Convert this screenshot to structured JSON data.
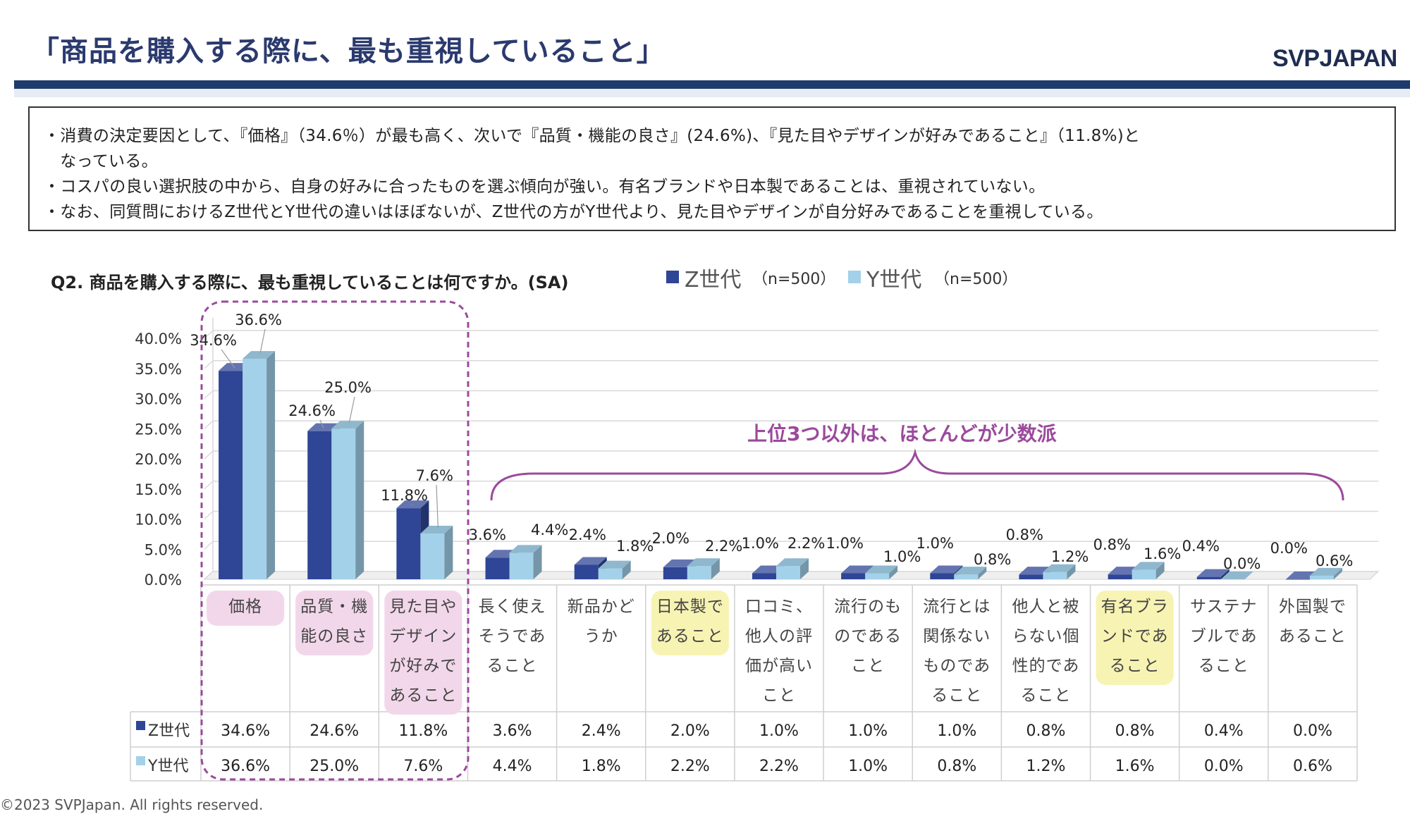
{
  "header": {
    "title": "「商品を購入する際に、最も重視していること」",
    "logo": "SVPJAPAN"
  },
  "summary": {
    "bullets": [
      "・消費の決定要因として、『価格』（34.6％）が最も高く、次いで『品質・機能の良さ』(24.6%)、『見た目やデザインが好みであること』（11.8%)と",
      "　なっている。",
      "・コスパの良い選択肢の中から、自身の好みに合ったものを選ぶ傾向が強い。有名ブランドや日本製であることは、重視されていない。",
      "・なお、同質問におけるZ世代とY世代の違いはほぼないが、Z世代の方がY世代より、見た目やデザインが自分好みであることを重視している。"
    ]
  },
  "question": "Q2. 商品を購入する際に、最も重視していることは何ですか。(SA)",
  "legend": [
    {
      "name": "Z世代",
      "n": "（n=500）"
    },
    {
      "name": "Y世代",
      "n": "（n=500）"
    }
  ],
  "callout": "上位3つ以外は、ほとんどが少数派",
  "footer": {
    "copyright": "©2023  SVPJapan. All rights reserved."
  },
  "colors": {
    "z": "#2f4596",
    "y": "#a3d1ea",
    "accent": "#9b4a9c",
    "highlight_pink": "#f2d7ea",
    "highlight_yellow": "#f7f3b3",
    "header_bar": "#1f3a6d"
  },
  "chart_data": {
    "type": "bar",
    "title": "",
    "xlabel": "",
    "ylabel": "",
    "ylim": [
      0,
      40
    ],
    "yticks": [
      "0.0%",
      "5.0%",
      "10.0%",
      "15.0%",
      "20.0%",
      "25.0%",
      "30.0%",
      "35.0%",
      "40.0%"
    ],
    "grid": true,
    "legend_position": "top",
    "categories": [
      "価格",
      "品質・機能の良さ",
      "見た目やデザインが好みであること",
      "長く使えそうであること",
      "新品かどうか",
      "日本製であること",
      "口コミ、他人の評価が高いこと",
      "流行のものであること",
      "流行とは関係ないものであること",
      "他人と被らない個性的であること",
      "有名ブランドであること",
      "サステナブルであること",
      "外国製であること"
    ],
    "category_lines": [
      [
        "価格"
      ],
      [
        "品質・機",
        "能の良さ"
      ],
      [
        "見た目や",
        "デザイン",
        "が好みで",
        "あること"
      ],
      [
        "長く使え",
        "そうであ",
        "ること"
      ],
      [
        "新品かど",
        "うか"
      ],
      [
        "日本製で",
        "あること"
      ],
      [
        "口コミ、",
        "他人の評",
        "価が高い",
        "こと"
      ],
      [
        "流行のも",
        "のである",
        "こと"
      ],
      [
        "流行とは",
        "関係ない",
        "ものであ",
        "ること"
      ],
      [
        "他人と被",
        "らない個",
        "性的であ",
        "ること"
      ],
      [
        "有名ブラ",
        "ンドであ",
        "ること"
      ],
      [
        "サステナ",
        "ブルであ",
        "ること"
      ],
      [
        "外国製で",
        "あること"
      ]
    ],
    "highlight": [
      "pink",
      "pink",
      "pink",
      "",
      "",
      "yellow",
      "",
      "",
      "",
      "",
      "yellow",
      "",
      ""
    ],
    "series": [
      {
        "name": "Z世代",
        "values": [
          34.6,
          24.6,
          11.8,
          3.6,
          2.4,
          2.0,
          1.0,
          1.0,
          1.0,
          0.8,
          0.8,
          0.4,
          0.0
        ],
        "labels": [
          "34.6%",
          "24.6%",
          "11.8%",
          "3.6%",
          "2.4%",
          "2.0%",
          "1.0%",
          "1.0%",
          "1.0%",
          "0.8%",
          "0.8%",
          "0.4%",
          "0.0%"
        ]
      },
      {
        "name": "Y世代",
        "values": [
          36.6,
          25.0,
          7.6,
          4.4,
          1.8,
          2.2,
          2.2,
          1.0,
          0.8,
          1.2,
          1.6,
          0.0,
          0.6
        ],
        "labels": [
          "36.6%",
          "25.0%",
          "7.6%",
          "4.4%",
          "1.8%",
          "2.2%",
          "2.2%",
          "1.0%",
          "0.8%",
          "1.2%",
          "1.6%",
          "0.0%",
          "0.6%"
        ]
      }
    ]
  }
}
